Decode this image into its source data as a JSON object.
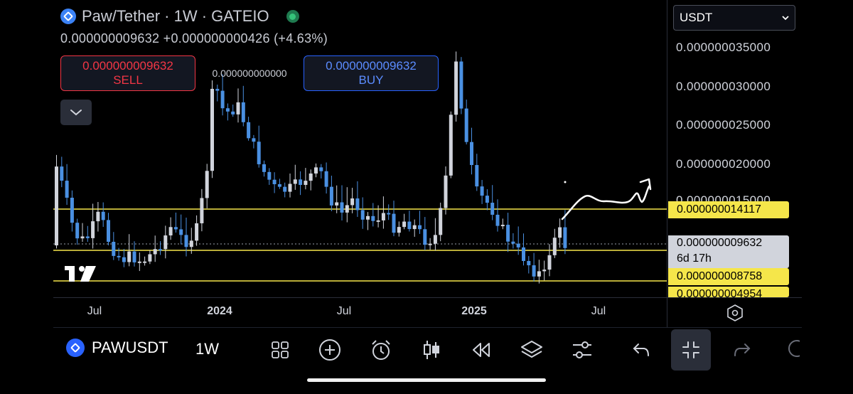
{
  "legend": {
    "title": "Paw/Tether · 1W · GATEIO",
    "values": "0.000000009632  +0.000000000426 (+4.63%)"
  },
  "trade": {
    "sell_price": "0.000000009632",
    "sell_label": "SELL",
    "spread": "0.000000000000",
    "buy_price": "0.000000009632",
    "buy_label": "BUY"
  },
  "price_scale": {
    "currency": "USDT",
    "labels": [
      "0.000000035000",
      "0.000000030000",
      "0.000000025000",
      "0.000000020000",
      "0.000000015000"
    ],
    "tags": {
      "upper_line": "0.000000014117",
      "current_price": "0.000000009632",
      "countdown": "6d 17h",
      "middle_line": "0.000000008758",
      "lower_line": "0.000000004954"
    }
  },
  "time_axis": {
    "labels": [
      "Jul",
      "2024",
      "Jul",
      "2025",
      "Jul"
    ]
  },
  "toolbar": {
    "symbol": "PAWUSDT",
    "interval": "1W",
    "icons": [
      "grid-icon",
      "add-circle-icon",
      "alarm-icon",
      "candles-icon",
      "rewind-icon",
      "layers-icon",
      "sliders-icon",
      "undo-icon",
      "exit-fullscreen-icon",
      "redo-icon"
    ]
  },
  "colors": {
    "up_candle": "#d1d4dc",
    "down_candle": "#4a90e2",
    "horizontal_line": "#f5e64a",
    "sell": "#f23645",
    "buy": "#2962ff"
  }
}
